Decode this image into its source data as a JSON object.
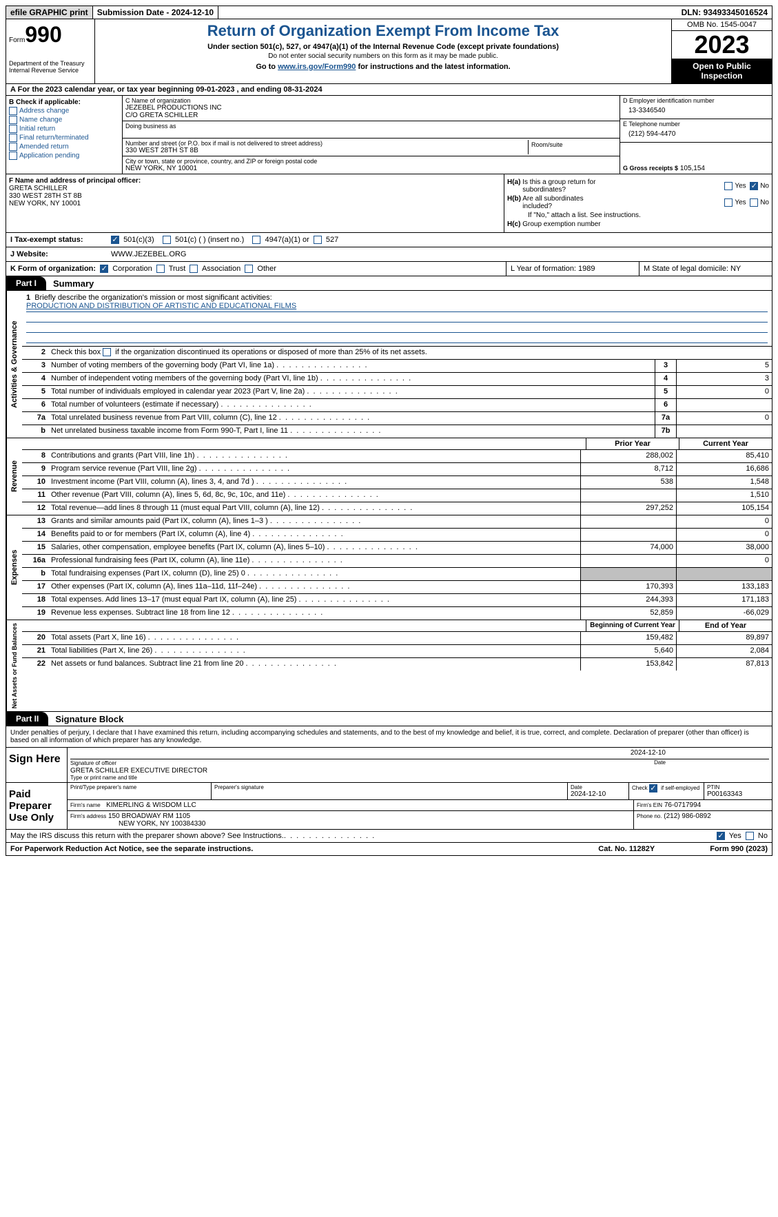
{
  "topbar": {
    "efile": "efile GRAPHIC print",
    "sub_label": "Submission Date - 2024-12-10",
    "dln": "DLN: 93493345016524"
  },
  "header": {
    "form_word": "Form",
    "form_num": "990",
    "dept": "Department of the Treasury\nInternal Revenue Service",
    "title": "Return of Organization Exempt From Income Tax",
    "sub": "Under section 501(c), 527, or 4947(a)(1) of the Internal Revenue Code (except private foundations)",
    "sub2": "Do not enter social security numbers on this form as it may be made public.",
    "goto_pre": "Go to ",
    "goto_link": "www.irs.gov/Form990",
    "goto_post": " for instructions and the latest information.",
    "omb": "OMB No. 1545-0047",
    "year": "2023",
    "open": "Open to Public Inspection"
  },
  "period": {
    "text_pre": "For the 2023 calendar year, or tax year beginning ",
    "begin": "09-01-2023",
    "mid": " , and ending ",
    "end": "08-31-2024"
  },
  "sectionB": {
    "label": "B Check if applicable:",
    "opts": [
      "Address change",
      "Name change",
      "Initial return",
      "Final return/terminated",
      "Amended return",
      "Application pending"
    ]
  },
  "sectionC": {
    "name_lbl": "C Name of organization",
    "name1": "JEZEBEL PRODUCTIONS INC",
    "name2": "C/O GRETA SCHILLER",
    "dba_lbl": "Doing business as",
    "street_lbl": "Number and street (or P.O. box if mail is not delivered to street address)",
    "street": "330 WEST 28TH ST 8B",
    "suite_lbl": "Room/suite",
    "city_lbl": "City or town, state or province, country, and ZIP or foreign postal code",
    "city": "NEW YORK, NY  10001"
  },
  "sectionD": {
    "lbl_d": "D Employer identification number",
    "ein": "13-3346540",
    "lbl_e": "E Telephone number",
    "phone": "(212) 594-4470",
    "lbl_g": "G Gross receipts $",
    "gross": "105,154"
  },
  "sectionF": {
    "lbl": "F Name and address of principal officer:",
    "name": "GRETA SCHILLER",
    "addr1": "330 WEST 28TH ST 8B",
    "addr2": "NEW YORK, NY  10001"
  },
  "sectionH": {
    "ha_lbl": "H(a) Is this a group return for subordinates?",
    "hb_lbl": "H(b) Are all subordinates included?",
    "hb_note": "If \"No,\" attach a list. See instructions.",
    "hc_lbl": "H(c) Group exemption number",
    "yes": "Yes",
    "no": "No"
  },
  "sectionI": {
    "lbl": "I   Tax-exempt status:",
    "o1": "501(c)(3)",
    "o2": "501(c) (  ) (insert no.)",
    "o3": "4947(a)(1) or",
    "o4": "527"
  },
  "sectionJ": {
    "lbl": "J   Website:",
    "val": "WWW.JEZEBEL.ORG"
  },
  "sectionK": {
    "lbl": "K Form of organization:",
    "o1": "Corporation",
    "o2": "Trust",
    "o3": "Association",
    "o4": "Other"
  },
  "sectionL": {
    "text": "L Year of formation: 1989"
  },
  "sectionM": {
    "text": "M State of legal domicile: NY"
  },
  "part1": {
    "tab": "Part I",
    "title": "Summary",
    "mission_lbl": "Briefly describe the organization's mission or most significant activities:",
    "mission": "PRODUCTION AND DISTRIBUTION OF ARTISTIC AND EDUCATIONAL FILMS",
    "line2": "Check this box      if the organization discontinued its operations or disposed of more than 25% of its net assets.",
    "side_ag": "Activities & Governance",
    "side_rev": "Revenue",
    "side_exp": "Expenses",
    "side_na": "Net Assets or Fund Balances",
    "prior": "Prior Year",
    "current": "Current Year",
    "begin": "Beginning of Current Year",
    "eoy": "End of Year",
    "lines_ag": [
      {
        "n": "3",
        "d": "Number of voting members of the governing body (Part VI, line 1a)",
        "box": "3",
        "v": "5"
      },
      {
        "n": "4",
        "d": "Number of independent voting members of the governing body (Part VI, line 1b)",
        "box": "4",
        "v": "3"
      },
      {
        "n": "5",
        "d": "Total number of individuals employed in calendar year 2023 (Part V, line 2a)",
        "box": "5",
        "v": "0"
      },
      {
        "n": "6",
        "d": "Total number of volunteers (estimate if necessary)",
        "box": "6",
        "v": ""
      },
      {
        "n": "7a",
        "d": "Total unrelated business revenue from Part VIII, column (C), line 12",
        "box": "7a",
        "v": "0"
      },
      {
        "n": "b",
        "d": "Net unrelated business taxable income from Form 990-T, Part I, line 11",
        "box": "7b",
        "v": ""
      }
    ],
    "lines_rev": [
      {
        "n": "8",
        "d": "Contributions and grants (Part VIII, line 1h)",
        "p": "288,002",
        "c": "85,410"
      },
      {
        "n": "9",
        "d": "Program service revenue (Part VIII, line 2g)",
        "p": "8,712",
        "c": "16,686"
      },
      {
        "n": "10",
        "d": "Investment income (Part VIII, column (A), lines 3, 4, and 7d )",
        "p": "538",
        "c": "1,548"
      },
      {
        "n": "11",
        "d": "Other revenue (Part VIII, column (A), lines 5, 6d, 8c, 9c, 10c, and 11e)",
        "p": "",
        "c": "1,510"
      },
      {
        "n": "12",
        "d": "Total revenue—add lines 8 through 11 (must equal Part VIII, column (A), line 12)",
        "p": "297,252",
        "c": "105,154"
      }
    ],
    "lines_exp": [
      {
        "n": "13",
        "d": "Grants and similar amounts paid (Part IX, column (A), lines 1–3 )",
        "p": "",
        "c": "0"
      },
      {
        "n": "14",
        "d": "Benefits paid to or for members (Part IX, column (A), line 4)",
        "p": "",
        "c": "0"
      },
      {
        "n": "15",
        "d": "Salaries, other compensation, employee benefits (Part IX, column (A), lines 5–10)",
        "p": "74,000",
        "c": "38,000"
      },
      {
        "n": "16a",
        "d": "Professional fundraising fees (Part IX, column (A), line 11e)",
        "p": "",
        "c": "0"
      },
      {
        "n": "b",
        "d": "Total fundraising expenses (Part IX, column (D), line 25) 0",
        "p": "shaded",
        "c": "shaded"
      },
      {
        "n": "17",
        "d": "Other expenses (Part IX, column (A), lines 11a–11d, 11f–24e)",
        "p": "170,393",
        "c": "133,183"
      },
      {
        "n": "18",
        "d": "Total expenses. Add lines 13–17 (must equal Part IX, column (A), line 25)",
        "p": "244,393",
        "c": "171,183"
      },
      {
        "n": "19",
        "d": "Revenue less expenses. Subtract line 18 from line 12",
        "p": "52,859",
        "c": "-66,029"
      }
    ],
    "lines_na": [
      {
        "n": "20",
        "d": "Total assets (Part X, line 16)",
        "p": "159,482",
        "c": "89,897"
      },
      {
        "n": "21",
        "d": "Total liabilities (Part X, line 26)",
        "p": "5,640",
        "c": "2,084"
      },
      {
        "n": "22",
        "d": "Net assets or fund balances. Subtract line 21 from line 20",
        "p": "153,842",
        "c": "87,813"
      }
    ]
  },
  "part2": {
    "tab": "Part II",
    "title": "Signature Block",
    "declare": "Under penalties of perjury, I declare that I have examined this return, including accompanying schedules and statements, and to the best of my knowledge and belief, it is true, correct, and complete. Declaration of preparer (other than officer) is based on all information of which preparer has any knowledge.",
    "sign_here": "Sign Here",
    "sig_officer_lbl": "Signature of officer",
    "sig_name": "GRETA SCHILLER  EXECUTIVE DIRECTOR",
    "sig_type_lbl": "Type or print name and title",
    "sig_date_lbl": "Date",
    "sig_date": "2024-12-10",
    "paid": "Paid Preparer Use Only",
    "prep_name_lbl": "Print/Type preparer's name",
    "prep_sig_lbl": "Preparer's signature",
    "prep_date_lbl": "Date",
    "prep_date": "2024-12-10",
    "prep_check": "Check       if self-employed",
    "ptin_lbl": "PTIN",
    "ptin": "P00163343",
    "firm_name_lbl": "Firm's name",
    "firm_name": "KIMERLING & WISDOM LLC",
    "firm_ein_lbl": "Firm's EIN",
    "firm_ein": "76-0717994",
    "firm_addr_lbl": "Firm's address",
    "firm_addr1": "150 BROADWAY RM 1105",
    "firm_addr2": "NEW YORK, NY  100384330",
    "phone_lbl": "Phone no.",
    "phone": "(212) 986-0892",
    "discuss": "May the IRS discuss this return with the preparer shown above? See Instructions."
  },
  "footer": {
    "pra": "For Paperwork Reduction Act Notice, see the separate instructions.",
    "cat": "Cat. No. 11282Y",
    "form": "Form 990 (2023)"
  }
}
